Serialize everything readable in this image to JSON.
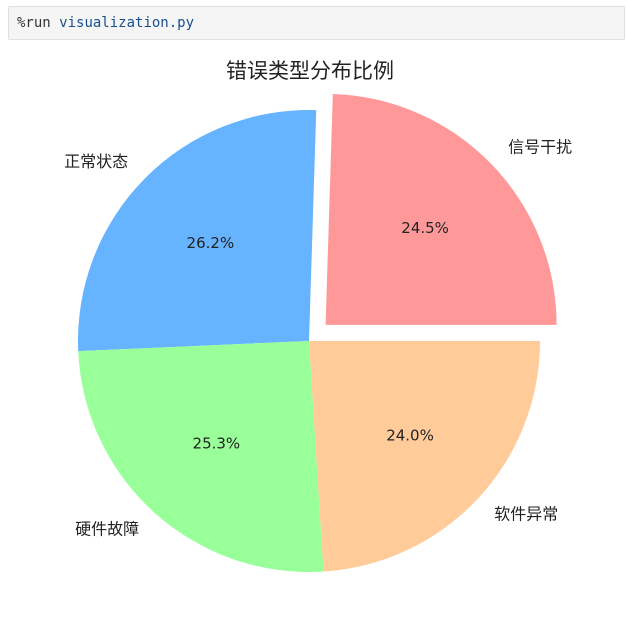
{
  "cell": {
    "command": "%run",
    "argument": "visualization.py"
  },
  "chart_data": {
    "type": "pie",
    "title": "错误类型分布比例",
    "start_angle_deg": 0,
    "direction": "counterclockwise",
    "slices": [
      {
        "label": "信号干扰",
        "value": 24.5,
        "pct_label": "24.5%",
        "color": "#ff9999",
        "explode": true
      },
      {
        "label": "正常状态",
        "value": 26.2,
        "pct_label": "26.2%",
        "color": "#66b3ff",
        "explode": false
      },
      {
        "label": "硬件故障",
        "value": 25.3,
        "pct_label": "25.3%",
        "color": "#99ff99",
        "explode": false
      },
      {
        "label": "软件异常",
        "value": 24.0,
        "pct_label": "24.0%",
        "color": "#ffcc99",
        "explode": false
      }
    ]
  }
}
